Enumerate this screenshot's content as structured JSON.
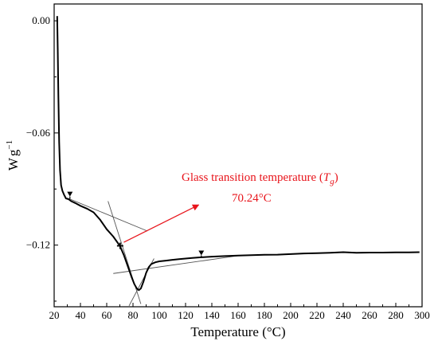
{
  "chart_data": {
    "type": "line",
    "xlabel": "Temperature (°C)",
    "ylabel_main": "W",
    "ylabel_unit": "g",
    "ylabel_exp": "−1",
    "xlim": [
      20,
      300
    ],
    "ylim": [
      -0.153,
      0.009
    ],
    "x_ticks": [
      20,
      40,
      60,
      80,
      100,
      120,
      140,
      160,
      180,
      200,
      220,
      240,
      260,
      280,
      300
    ],
    "x_tick_labels": [
      "20",
      "40",
      "60",
      "80",
      "100",
      "120",
      "140",
      "160",
      "180",
      "200",
      "220",
      "240",
      "260",
      "280",
      "300"
    ],
    "y_ticks": [
      0.0,
      -0.06,
      -0.12
    ],
    "y_tick_labels": [
      "0.00",
      "−0.06",
      "−0.12"
    ],
    "series": [
      {
        "color": "#000000",
        "x": [
          22.3,
          22.7,
          23.2,
          23.8,
          24.5,
          25.3,
          26.3,
          27.5,
          29,
          31,
          33,
          36,
          40,
          45,
          50,
          55,
          60,
          65,
          70,
          73,
          76,
          79,
          81,
          83,
          84.5,
          86,
          88,
          90,
          92,
          94,
          97,
          100,
          105,
          110,
          115,
          120,
          125,
          130,
          135,
          140,
          150,
          160,
          170,
          180,
          190,
          200,
          210,
          220,
          230,
          240,
          250,
          260,
          270,
          280,
          290,
          298
        ],
        "y": [
          0.0025,
          -0.015,
          -0.04,
          -0.065,
          -0.08,
          -0.088,
          -0.091,
          -0.093,
          -0.095,
          -0.0955,
          -0.0965,
          -0.0975,
          -0.099,
          -0.1005,
          -0.1025,
          -0.1065,
          -0.1115,
          -0.1155,
          -0.1204,
          -0.1252,
          -0.1312,
          -0.1372,
          -0.1409,
          -0.1433,
          -0.1441,
          -0.1432,
          -0.1395,
          -0.1349,
          -0.1318,
          -0.1301,
          -0.1292,
          -0.1287,
          -0.1283,
          -0.1279,
          -0.1275,
          -0.1272,
          -0.1269,
          -0.1266,
          -0.1264,
          -0.1262,
          -0.1259,
          -0.1256,
          -0.1254,
          -0.1252,
          -0.1251,
          -0.1248,
          -0.1245,
          -0.1243,
          -0.1241,
          -0.1238,
          -0.1241,
          -0.124,
          -0.124,
          -0.1239,
          -0.1239,
          -0.1238
        ]
      }
    ],
    "markers": [
      {
        "x": 32,
        "y": -0.094,
        "shape": "triangle-down"
      },
      {
        "x": 70.24,
        "y": -0.1204,
        "shape": "cross"
      },
      {
        "x": 132,
        "y": -0.1255,
        "shape": "triangle-down"
      }
    ],
    "tangents": [
      {
        "x1": 30,
        "y1": -0.0948,
        "x2": 91,
        "y2": -0.1125
      },
      {
        "x1": 61,
        "y1": -0.0965,
        "x2": 86,
        "y2": -0.1515
      },
      {
        "x1": 77,
        "y1": -0.1525,
        "x2": 96,
        "y2": -0.1272
      },
      {
        "x1": 65,
        "y1": -0.1352,
        "x2": 160,
        "y2": -0.1257
      }
    ],
    "annotation": {
      "text_prefix": "Glass transition temperature (",
      "text_symbol": "T",
      "text_subscript": "g",
      "text_suffix": ")",
      "value": "70.24°C",
      "color": "#e8141b",
      "arrow_from": {
        "x": 73,
        "y": -0.1185
      },
      "arrow_to": {
        "x": 130,
        "y": -0.0985
      }
    },
    "grid": false,
    "legend": "none"
  }
}
